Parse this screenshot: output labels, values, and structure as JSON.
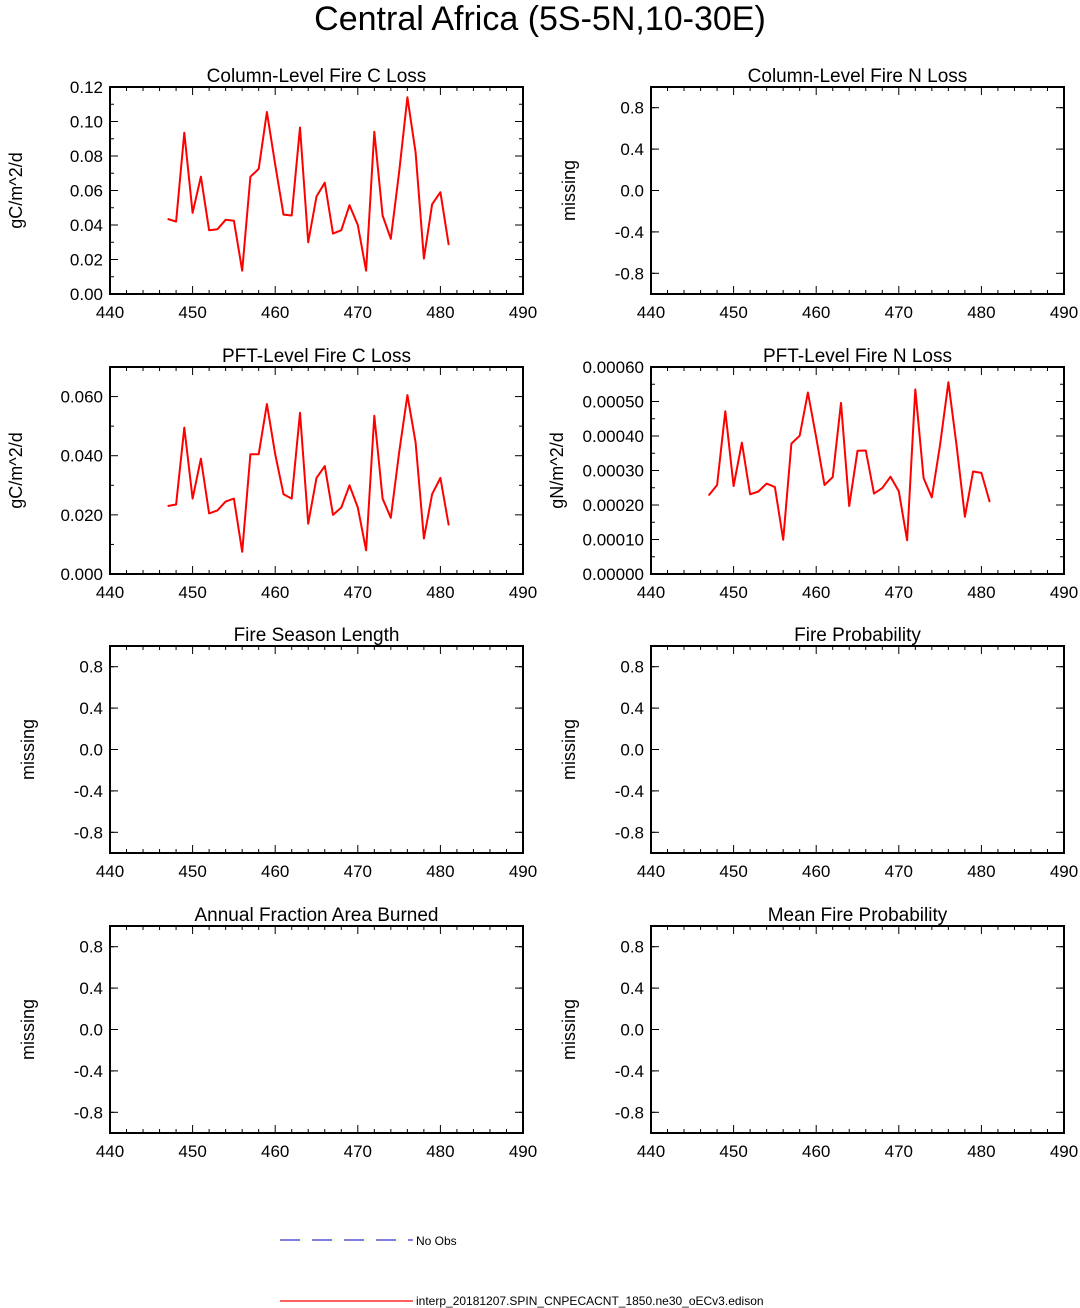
{
  "figure": {
    "title": "Central Africa (5S-5N,10-30E)",
    "line_color": "#ff0000",
    "obs_color": "#3333cc"
  },
  "legend": {
    "obs_label": "No Obs",
    "model_label": "interp_20181207.SPIN_CNPECACNT_1850.ne30_oECv3.edison"
  },
  "chart_data": [
    {
      "type": "line",
      "title": "Column-Level Fire C Loss",
      "ylabel": "gC/m^2/d",
      "xlim": [
        440,
        490
      ],
      "ylim": [
        0,
        0.12
      ],
      "xticks": [
        "440",
        "450",
        "460",
        "470",
        "480",
        "490"
      ],
      "yticks": [
        "0.00",
        "0.02",
        "0.04",
        "0.06",
        "0.08",
        "0.10",
        "0.12"
      ],
      "x": [
        447,
        448,
        449,
        450,
        451,
        452,
        453,
        454,
        455,
        456,
        457,
        458,
        459,
        460,
        461,
        462,
        463,
        464,
        465,
        466,
        467,
        468,
        469,
        470,
        471,
        472,
        473,
        474,
        475,
        476,
        477,
        478,
        479,
        480,
        481
      ],
      "series": [
        {
          "values": [
            0.0435,
            0.042,
            0.0935,
            0.047,
            0.068,
            0.037,
            0.0375,
            0.043,
            0.0425,
            0.0135,
            0.068,
            0.0725,
            0.1055,
            0.075,
            0.046,
            0.0455,
            0.0965,
            0.03,
            0.0565,
            0.0645,
            0.035,
            0.037,
            0.0515,
            0.04,
            0.0135,
            0.094,
            0.0455,
            0.032,
            0.0705,
            0.114,
            0.082,
            0.0205,
            0.052,
            0.059,
            0.0285
          ]
        }
      ]
    },
    {
      "type": "line",
      "title": "Column-Level Fire N Loss",
      "ylabel": "missing",
      "xlim": [
        440,
        490
      ],
      "ylim": [
        -1,
        1
      ],
      "xticks": [
        "440",
        "450",
        "460",
        "470",
        "480",
        "490"
      ],
      "yticks": [
        "-0.8",
        "-0.4",
        "0.0",
        "0.4",
        "0.8"
      ],
      "series": []
    },
    {
      "type": "line",
      "title": "PFT-Level Fire C Loss",
      "ylabel": "gC/m^2/d",
      "xlim": [
        440,
        490
      ],
      "ylim": [
        0,
        0.07
      ],
      "xticks": [
        "440",
        "450",
        "460",
        "470",
        "480",
        "490"
      ],
      "yticks": [
        "0.000",
        "0.020",
        "0.040",
        "0.060"
      ],
      "x": [
        447,
        448,
        449,
        450,
        451,
        452,
        453,
        454,
        455,
        456,
        457,
        458,
        459,
        460,
        461,
        462,
        463,
        464,
        465,
        466,
        467,
        468,
        469,
        470,
        471,
        472,
        473,
        474,
        475,
        476,
        477,
        478,
        479,
        480,
        481
      ],
      "series": [
        {
          "values": [
            0.023,
            0.0235,
            0.0495,
            0.0255,
            0.039,
            0.0205,
            0.0215,
            0.0245,
            0.0255,
            0.0075,
            0.0405,
            0.0405,
            0.0575,
            0.0405,
            0.027,
            0.0255,
            0.0545,
            0.017,
            0.0325,
            0.0365,
            0.02,
            0.0225,
            0.03,
            0.0225,
            0.008,
            0.0535,
            0.0255,
            0.019,
            0.041,
            0.0605,
            0.0445,
            0.012,
            0.027,
            0.0325,
            0.0165
          ]
        }
      ]
    },
    {
      "type": "line",
      "title": "PFT-Level Fire N Loss",
      "ylabel": "gN/m^2/d",
      "xlim": [
        440,
        490
      ],
      "ylim": [
        0,
        0.0006
      ],
      "xticks": [
        "440",
        "450",
        "460",
        "470",
        "480",
        "490"
      ],
      "yticks": [
        "0.00000",
        "0.00010",
        "0.00020",
        "0.00030",
        "0.00040",
        "0.00050",
        "0.00060"
      ],
      "x": [
        447,
        448,
        449,
        450,
        451,
        452,
        453,
        454,
        455,
        456,
        457,
        458,
        459,
        460,
        461,
        462,
        463,
        464,
        465,
        466,
        467,
        468,
        469,
        470,
        471,
        472,
        473,
        474,
        475,
        476,
        477,
        478,
        479,
        480,
        481
      ],
      "series": [
        {
          "values": [
            0.000228,
            0.000258,
            0.000472,
            0.000255,
            0.000381,
            0.000231,
            0.000239,
            0.000262,
            0.000252,
            9.9e-05,
            0.000378,
            0.000401,
            0.000526,
            0.000396,
            0.000258,
            0.000281,
            0.000496,
            0.000197,
            0.000357,
            0.000358,
            0.000233,
            0.000249,
            0.000282,
            0.00024,
            9.8e-05,
            0.000535,
            0.000278,
            0.000222,
            0.000375,
            0.000556,
            0.000372,
            0.000166,
            0.000297,
            0.000293,
            0.000209
          ]
        }
      ]
    },
    {
      "type": "line",
      "title": "Fire Season Length",
      "ylabel": "missing",
      "xlim": [
        440,
        490
      ],
      "ylim": [
        -1,
        1
      ],
      "xticks": [
        "440",
        "450",
        "460",
        "470",
        "480",
        "490"
      ],
      "yticks": [
        "-0.8",
        "-0.4",
        "0.0",
        "0.4",
        "0.8"
      ],
      "series": []
    },
    {
      "type": "line",
      "title": "Fire Probability",
      "ylabel": "missing",
      "xlim": [
        440,
        490
      ],
      "ylim": [
        -1,
        1
      ],
      "xticks": [
        "440",
        "450",
        "460",
        "470",
        "480",
        "490"
      ],
      "yticks": [
        "-0.8",
        "-0.4",
        "0.0",
        "0.4",
        "0.8"
      ],
      "series": []
    },
    {
      "type": "line",
      "title": "Annual Fraction Area Burned",
      "ylabel": "missing",
      "xlim": [
        440,
        490
      ],
      "ylim": [
        -1,
        1
      ],
      "xticks": [
        "440",
        "450",
        "460",
        "470",
        "480",
        "490"
      ],
      "yticks": [
        "-0.8",
        "-0.4",
        "0.0",
        "0.4",
        "0.8"
      ],
      "series": []
    },
    {
      "type": "line",
      "title": "Mean Fire Probability",
      "ylabel": "missing",
      "xlim": [
        440,
        490
      ],
      "ylim": [
        -1,
        1
      ],
      "xticks": [
        "440",
        "450",
        "460",
        "470",
        "480",
        "490"
      ],
      "yticks": [
        "-0.8",
        "-0.4",
        "0.0",
        "0.4",
        "0.8"
      ],
      "series": []
    }
  ]
}
